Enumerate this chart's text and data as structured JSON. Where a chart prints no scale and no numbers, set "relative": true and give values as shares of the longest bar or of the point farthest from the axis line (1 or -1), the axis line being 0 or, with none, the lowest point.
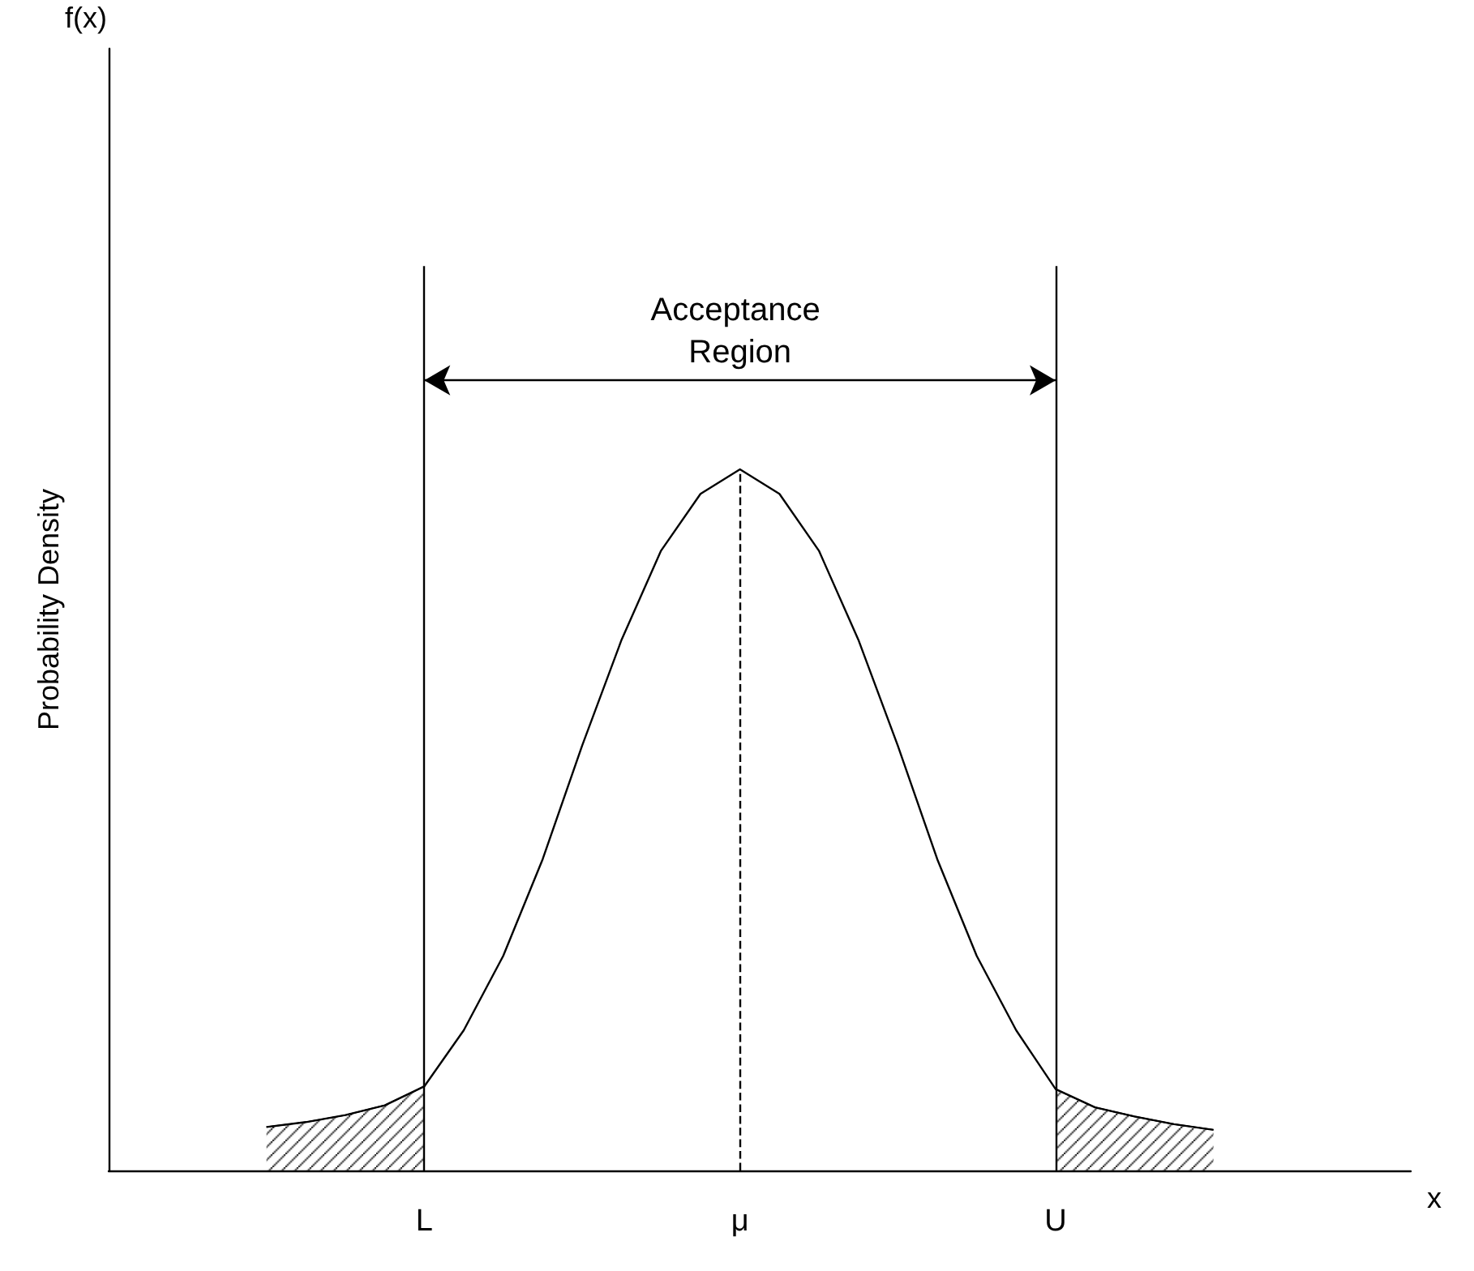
{
  "chart_data": {
    "type": "line",
    "relative": true,
    "xlabel": "x",
    "ylabel": "Probability Density",
    "annotations": [
      "f(x)",
      "Acceptance Region"
    ],
    "categories": [
      null,
      null,
      null,
      null,
      null,
      null,
      null,
      null,
      "L",
      null,
      null,
      null,
      null,
      null,
      null,
      null,
      "μ",
      null,
      null,
      null,
      null,
      null,
      null,
      null,
      "U",
      null,
      null,
      null,
      null,
      null,
      null,
      null,
      null,
      null
    ],
    "series": [
      {
        "color": "#000000",
        "values": [
          null,
          null,
          null,
          null,
          0.062,
          0.069,
          0.079,
          0.093,
          0.12,
          0.2,
          0.306,
          0.444,
          0.606,
          0.757,
          0.884,
          0.965,
          1.0,
          0.965,
          0.884,
          0.757,
          0.606,
          0.444,
          0.306,
          0.2,
          0.116,
          0.09,
          0.077,
          0.066,
          0.058,
          null,
          null,
          null,
          null,
          null
        ]
      },
      {
        "type": "area",
        "color": "#000000",
        "values": [
          null,
          null,
          null,
          null,
          0.062,
          0.069,
          0.079,
          0.093,
          0.12,
          null,
          null,
          null,
          null,
          null,
          null,
          null,
          null,
          null,
          null,
          null,
          null,
          null,
          null,
          null,
          null,
          null,
          null,
          null,
          null,
          null,
          null,
          null,
          null,
          null
        ]
      },
      {
        "type": "area",
        "color": "#000000",
        "values": [
          null,
          null,
          null,
          null,
          null,
          null,
          null,
          null,
          null,
          null,
          null,
          null,
          null,
          null,
          null,
          null,
          null,
          null,
          null,
          null,
          null,
          null,
          null,
          null,
          0.116,
          0.09,
          0.077,
          0.066,
          0.058,
          null,
          null,
          null,
          null,
          null
        ]
      }
    ],
    "ref_lines": [
      {
        "axis": "x",
        "value": "L"
      },
      {
        "axis": "x",
        "value": "U"
      },
      {
        "axis": "x",
        "value": "μ",
        "line_style": "dashed"
      }
    ],
    "grid": false,
    "marker": "none"
  }
}
